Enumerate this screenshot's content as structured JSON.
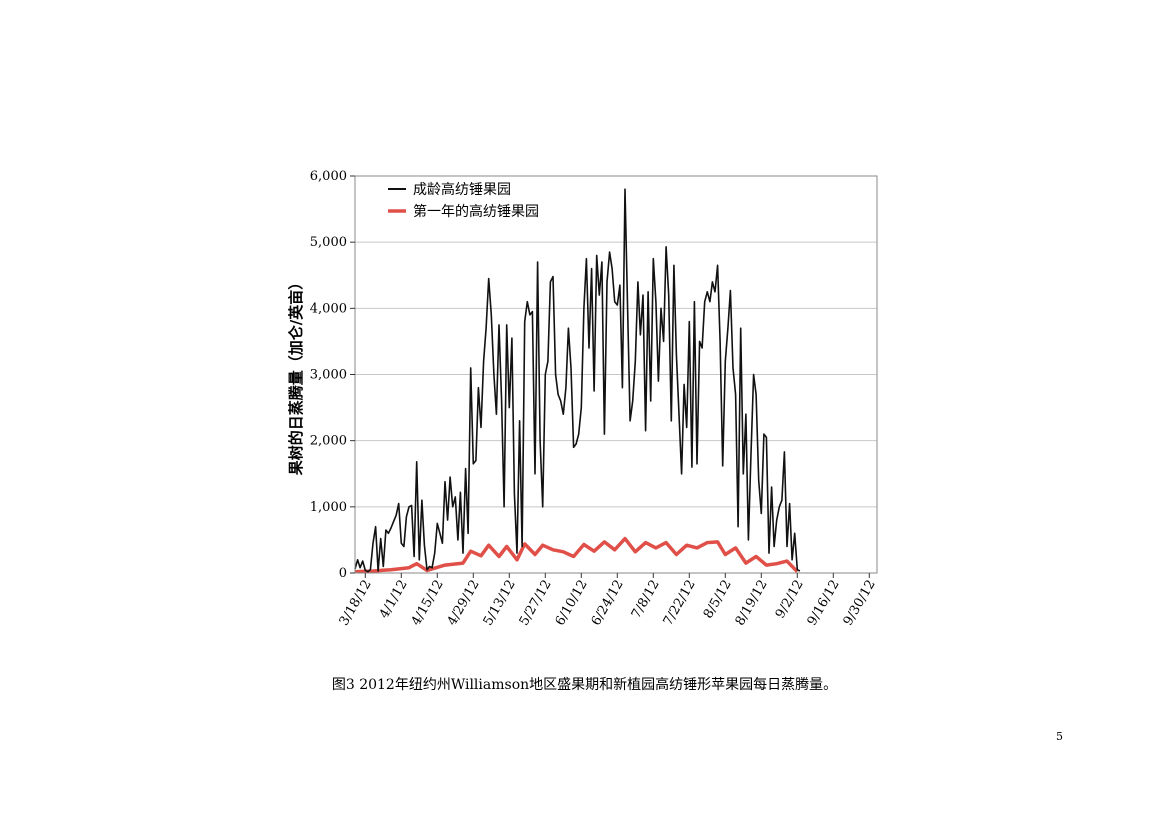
{
  "caption": "图3 2012年纽约州Williamson地区盛果期和新植园高纺锤形苹果园每日蒸腾量。",
  "page_number": "5",
  "chart_data": {
    "type": "line",
    "title": "",
    "xlabel": "",
    "ylabel": "果树的日蒸腾量（加仑/英亩）",
    "ylim": [
      0,
      6000
    ],
    "y_ticks": [
      0,
      1000,
      2000,
      3000,
      4000,
      5000,
      6000
    ],
    "y_tick_labels": [
      "0",
      "1,000",
      "2,000",
      "3,000",
      "4,000",
      "5,000",
      "6,000"
    ],
    "grid": true,
    "legend_position": "top-left",
    "x_start": "3/14/12",
    "x_end": "10/3/12",
    "x_ticks": [
      "3/18/12",
      "4/1/12",
      "4/15/12",
      "4/29/12",
      "5/13/12",
      "5/27/12",
      "6/10/12",
      "6/24/12",
      "7/8/12",
      "7/22/12",
      "8/5/12",
      "8/19/12",
      "9/2/12",
      "9/16/12",
      "9/30/12"
    ],
    "series": [
      {
        "name": "成龄高纺锤果园",
        "color": "#111111",
        "points": [
          [
            "3/14/12",
            60
          ],
          [
            "3/15/12",
            200
          ],
          [
            "3/16/12",
            80
          ],
          [
            "3/17/12",
            180
          ],
          [
            "3/18/12",
            40
          ],
          [
            "3/19/12",
            20
          ],
          [
            "3/20/12",
            50
          ],
          [
            "3/21/12",
            450
          ],
          [
            "3/22/12",
            700
          ],
          [
            "3/23/12",
            30
          ],
          [
            "3/24/12",
            520
          ],
          [
            "3/25/12",
            100
          ],
          [
            "3/26/12",
            650
          ],
          [
            "3/27/12",
            600
          ],
          [
            "3/28/12",
            680
          ],
          [
            "3/29/12",
            780
          ],
          [
            "3/30/12",
            870
          ],
          [
            "3/31/12",
            1050
          ],
          [
            "4/1/12",
            450
          ],
          [
            "4/2/12",
            400
          ],
          [
            "4/3/12",
            850
          ],
          [
            "4/4/12",
            1000
          ],
          [
            "4/5/12",
            1020
          ],
          [
            "4/6/12",
            250
          ],
          [
            "4/7/12",
            1680
          ],
          [
            "4/8/12",
            200
          ],
          [
            "4/9/12",
            1100
          ],
          [
            "4/10/12",
            420
          ],
          [
            "4/11/12",
            50
          ],
          [
            "4/12/12",
            100
          ],
          [
            "4/13/12",
            80
          ],
          [
            "4/14/12",
            300
          ],
          [
            "4/15/12",
            750
          ],
          [
            "4/16/12",
            600
          ],
          [
            "4/17/12",
            450
          ],
          [
            "4/18/12",
            1380
          ],
          [
            "4/19/12",
            800
          ],
          [
            "4/20/12",
            1450
          ],
          [
            "4/21/12",
            1000
          ],
          [
            "4/22/12",
            1150
          ],
          [
            "4/23/12",
            500
          ],
          [
            "4/24/12",
            1220
          ],
          [
            "4/25/12",
            300
          ],
          [
            "4/26/12",
            1580
          ],
          [
            "4/27/12",
            600
          ],
          [
            "4/28/12",
            3100
          ],
          [
            "4/29/12",
            1650
          ],
          [
            "4/30/12",
            1700
          ],
          [
            "5/1/12",
            2800
          ],
          [
            "5/2/12",
            2200
          ],
          [
            "5/3/12",
            3200
          ],
          [
            "5/4/12",
            3700
          ],
          [
            "5/5/12",
            4450
          ],
          [
            "5/6/12",
            3900
          ],
          [
            "5/7/12",
            3000
          ],
          [
            "5/8/12",
            2400
          ],
          [
            "5/9/12",
            3750
          ],
          [
            "5/10/12",
            2600
          ],
          [
            "5/11/12",
            1000
          ],
          [
            "5/12/12",
            3750
          ],
          [
            "5/13/12",
            2500
          ],
          [
            "5/14/12",
            3550
          ],
          [
            "5/15/12",
            1200
          ],
          [
            "5/16/12",
            300
          ],
          [
            "5/17/12",
            2300
          ],
          [
            "5/18/12",
            400
          ],
          [
            "5/19/12",
            3800
          ],
          [
            "5/20/12",
            4100
          ],
          [
            "5/21/12",
            3900
          ],
          [
            "5/22/12",
            3950
          ],
          [
            "5/23/12",
            1500
          ],
          [
            "5/24/12",
            4700
          ],
          [
            "5/25/12",
            2000
          ],
          [
            "5/26/12",
            1000
          ],
          [
            "5/27/12",
            3000
          ],
          [
            "5/28/12",
            3200
          ],
          [
            "5/29/12",
            4400
          ],
          [
            "5/30/12",
            4480
          ],
          [
            "5/31/12",
            3000
          ],
          [
            "6/1/12",
            2700
          ],
          [
            "6/2/12",
            2600
          ],
          [
            "6/3/12",
            2400
          ],
          [
            "6/4/12",
            2800
          ],
          [
            "6/5/12",
            3700
          ],
          [
            "6/6/12",
            3100
          ],
          [
            "6/7/12",
            1900
          ],
          [
            "6/8/12",
            1950
          ],
          [
            "6/9/12",
            2100
          ],
          [
            "6/10/12",
            2500
          ],
          [
            "6/11/12",
            4000
          ],
          [
            "6/12/12",
            4750
          ],
          [
            "6/13/12",
            3400
          ],
          [
            "6/14/12",
            4600
          ],
          [
            "6/15/12",
            2750
          ],
          [
            "6/16/12",
            4800
          ],
          [
            "6/17/12",
            4200
          ],
          [
            "6/18/12",
            4700
          ],
          [
            "6/19/12",
            2100
          ],
          [
            "6/20/12",
            4400
          ],
          [
            "6/21/12",
            4850
          ],
          [
            "6/22/12",
            4600
          ],
          [
            "6/23/12",
            4100
          ],
          [
            "6/24/12",
            4050
          ],
          [
            "6/25/12",
            4350
          ],
          [
            "6/26/12",
            2800
          ],
          [
            "6/27/12",
            5800
          ],
          [
            "6/28/12",
            4000
          ],
          [
            "6/29/12",
            2300
          ],
          [
            "6/30/12",
            2600
          ],
          [
            "7/1/12",
            3200
          ],
          [
            "7/2/12",
            4400
          ],
          [
            "7/3/12",
            3600
          ],
          [
            "7/4/12",
            4200
          ],
          [
            "7/5/12",
            2150
          ],
          [
            "7/6/12",
            4250
          ],
          [
            "7/7/12",
            2600
          ],
          [
            "7/8/12",
            4750
          ],
          [
            "7/9/12",
            4100
          ],
          [
            "7/10/12",
            2900
          ],
          [
            "7/11/12",
            4000
          ],
          [
            "7/12/12",
            3500
          ],
          [
            "7/13/12",
            4930
          ],
          [
            "7/14/12",
            4200
          ],
          [
            "7/15/12",
            2300
          ],
          [
            "7/16/12",
            4650
          ],
          [
            "7/17/12",
            3300
          ],
          [
            "7/18/12",
            2400
          ],
          [
            "7/19/12",
            1500
          ],
          [
            "7/20/12",
            2850
          ],
          [
            "7/21/12",
            2200
          ],
          [
            "7/22/12",
            3800
          ],
          [
            "7/23/12",
            1600
          ],
          [
            "7/24/12",
            4100
          ],
          [
            "7/25/12",
            1650
          ],
          [
            "7/26/12",
            3500
          ],
          [
            "7/27/12",
            3400
          ],
          [
            "7/28/12",
            4100
          ],
          [
            "7/29/12",
            4250
          ],
          [
            "7/30/12",
            4100
          ],
          [
            "7/31/12",
            4400
          ],
          [
            "8/1/12",
            4250
          ],
          [
            "8/2/12",
            4650
          ],
          [
            "8/3/12",
            3500
          ],
          [
            "8/4/12",
            1620
          ],
          [
            "8/5/12",
            3200
          ],
          [
            "8/6/12",
            3700
          ],
          [
            "8/7/12",
            4270
          ],
          [
            "8/8/12",
            3100
          ],
          [
            "8/9/12",
            2700
          ],
          [
            "8/10/12",
            700
          ],
          [
            "8/11/12",
            3700
          ],
          [
            "8/12/12",
            1500
          ],
          [
            "8/13/12",
            2400
          ],
          [
            "8/14/12",
            500
          ],
          [
            "8/15/12",
            1800
          ],
          [
            "8/16/12",
            3000
          ],
          [
            "8/17/12",
            2700
          ],
          [
            "8/18/12",
            1400
          ],
          [
            "8/19/12",
            900
          ],
          [
            "8/20/12",
            2100
          ],
          [
            "8/21/12",
            2050
          ],
          [
            "8/22/12",
            300
          ],
          [
            "8/23/12",
            1300
          ],
          [
            "8/24/12",
            400
          ],
          [
            "8/25/12",
            800
          ],
          [
            "8/26/12",
            1000
          ],
          [
            "8/27/12",
            1100
          ],
          [
            "8/28/12",
            1830
          ],
          [
            "8/29/12",
            400
          ],
          [
            "8/30/12",
            1050
          ],
          [
            "8/31/12",
            200
          ],
          [
            "9/1/12",
            600
          ],
          [
            "9/2/12",
            50
          ],
          [
            "9/3/12",
            30
          ]
        ]
      },
      {
        "name": "第一年的高纺锤果园",
        "color": "#e05048",
        "points": [
          [
            "3/14/12",
            20
          ],
          [
            "3/21/12",
            30
          ],
          [
            "3/28/12",
            50
          ],
          [
            "4/4/12",
            80
          ],
          [
            "4/7/12",
            140
          ],
          [
            "4/11/12",
            40
          ],
          [
            "4/18/12",
            120
          ],
          [
            "4/25/12",
            150
          ],
          [
            "4/28/12",
            330
          ],
          [
            "5/2/12",
            260
          ],
          [
            "5/5/12",
            420
          ],
          [
            "5/9/12",
            250
          ],
          [
            "5/12/12",
            400
          ],
          [
            "5/16/12",
            200
          ],
          [
            "5/19/12",
            440
          ],
          [
            "5/23/12",
            280
          ],
          [
            "5/26/12",
            420
          ],
          [
            "5/30/12",
            350
          ],
          [
            "6/3/12",
            320
          ],
          [
            "6/7/12",
            250
          ],
          [
            "6/11/12",
            430
          ],
          [
            "6/15/12",
            330
          ],
          [
            "6/19/12",
            470
          ],
          [
            "6/23/12",
            350
          ],
          [
            "6/27/12",
            520
          ],
          [
            "7/1/12",
            320
          ],
          [
            "7/5/12",
            460
          ],
          [
            "7/9/12",
            380
          ],
          [
            "7/13/12",
            460
          ],
          [
            "7/17/12",
            280
          ],
          [
            "7/21/12",
            420
          ],
          [
            "7/25/12",
            380
          ],
          [
            "7/29/12",
            460
          ],
          [
            "8/2/12",
            470
          ],
          [
            "8/5/12",
            280
          ],
          [
            "8/9/12",
            380
          ],
          [
            "8/13/12",
            150
          ],
          [
            "8/17/12",
            250
          ],
          [
            "8/21/12",
            120
          ],
          [
            "8/25/12",
            140
          ],
          [
            "8/29/12",
            180
          ],
          [
            "9/2/12",
            20
          ]
        ]
      }
    ]
  }
}
